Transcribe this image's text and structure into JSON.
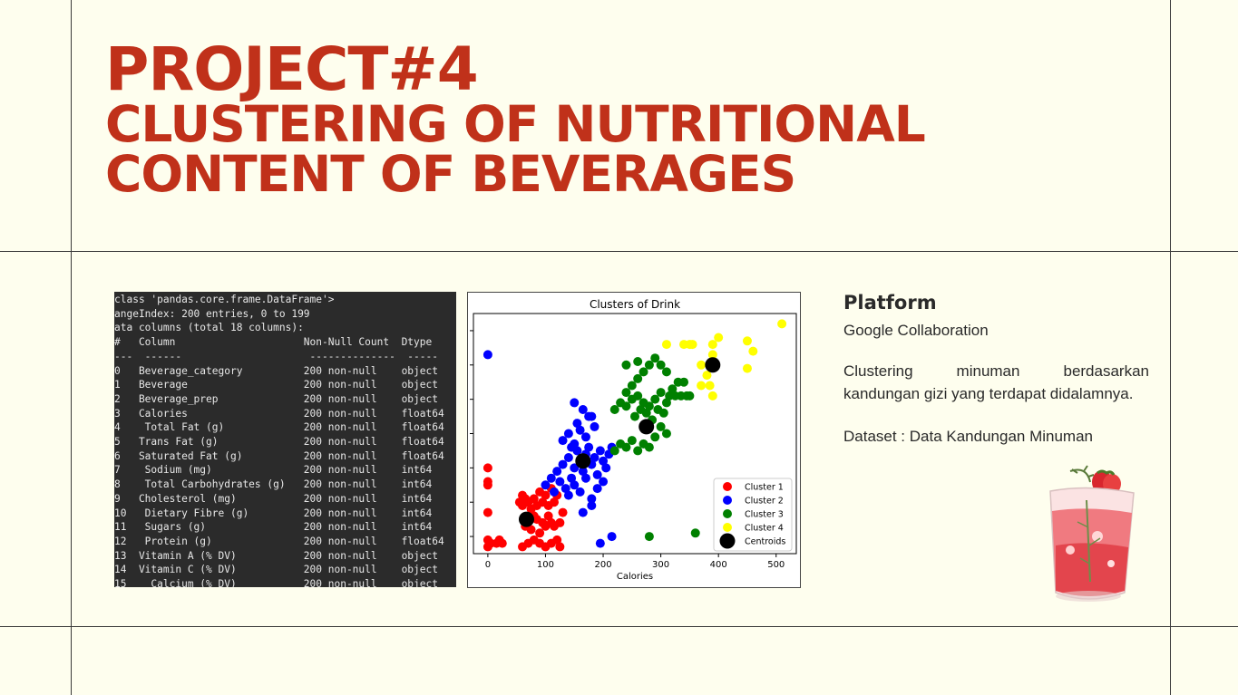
{
  "header": {
    "line1": "PROJECT#4",
    "line2": "CLUSTERING OF NUTRITIONAL",
    "line3": "CONTENT OF BEVERAGES"
  },
  "console": {
    "lines": [
      "class 'pandas.core.frame.DataFrame'>",
      "angeIndex: 200 entries, 0 to 199",
      "ata columns (total 18 columns):",
      "#   Column                     Non-Null Count  Dtype",
      "---  ------                     --------------  -----",
      "0   Beverage_category          200 non-null    object",
      "1   Beverage                   200 non-null    object",
      "2   Beverage_prep              200 non-null    object",
      "3   Calories                   200 non-null    float64",
      "4    Total Fat (g)             200 non-null    float64",
      "5   Trans Fat (g)              200 non-null    float64",
      "6   Saturated Fat (g)          200 non-null    float64",
      "7    Sodium (mg)               200 non-null    int64",
      "8    Total Carbohydrates (g)   200 non-null    int64",
      "9   Cholesterol (mg)           200 non-null    int64",
      "10   Dietary Fibre (g)         200 non-null    int64",
      "11   Sugars (g)                200 non-null    int64",
      "12   Protein (g)               200 non-null    float64",
      "13  Vitamin A (% DV)           200 non-null    object",
      "14  Vitamin C (% DV)           200 non-null    object",
      "15    Calcium (% DV)           200 non-null    object"
    ]
  },
  "chart_data": {
    "type": "scatter",
    "title": "Clusters of Drink",
    "xlabel": "Calories",
    "ylabel": "",
    "xlim": [
      -25,
      535
    ],
    "ylim": [
      0,
      70
    ],
    "xticks": [
      0,
      100,
      200,
      300,
      400,
      500
    ],
    "legend_position": "lower-right",
    "series": [
      {
        "name": "Cluster 1",
        "color": "#ff0000",
        "points": [
          [
            0,
            2
          ],
          [
            0,
            4
          ],
          [
            5,
            3
          ],
          [
            15,
            3
          ],
          [
            20,
            4
          ],
          [
            25,
            3
          ],
          [
            0,
            12
          ],
          [
            0,
            20
          ],
          [
            0,
            21
          ],
          [
            0,
            25
          ],
          [
            55,
            15
          ],
          [
            60,
            14
          ],
          [
            60,
            17
          ],
          [
            65,
            16
          ],
          [
            70,
            15
          ],
          [
            75,
            13
          ],
          [
            80,
            16
          ],
          [
            85,
            14
          ],
          [
            90,
            18
          ],
          [
            95,
            15
          ],
          [
            100,
            17
          ],
          [
            105,
            14
          ],
          [
            110,
            19
          ],
          [
            115,
            15
          ],
          [
            120,
            17
          ],
          [
            60,
            2
          ],
          [
            70,
            3
          ],
          [
            80,
            4
          ],
          [
            90,
            3
          ],
          [
            100,
            2
          ],
          [
            110,
            3
          ],
          [
            120,
            4
          ],
          [
            125,
            2
          ],
          [
            65,
            8
          ],
          [
            75,
            7
          ],
          [
            85,
            10
          ],
          [
            95,
            9
          ],
          [
            105,
            11
          ],
          [
            115,
            8
          ],
          [
            125,
            9
          ],
          [
            130,
            12
          ],
          [
            70,
            10
          ],
          [
            80,
            11
          ],
          [
            90,
            6
          ],
          [
            100,
            8
          ],
          [
            110,
            9
          ]
        ]
      },
      {
        "name": "Cluster 2",
        "color": "#0000ff",
        "points": [
          [
            0,
            58
          ],
          [
            130,
            26
          ],
          [
            140,
            28
          ],
          [
            145,
            22
          ],
          [
            150,
            25
          ],
          [
            155,
            30
          ],
          [
            160,
            27
          ],
          [
            165,
            24
          ],
          [
            170,
            29
          ],
          [
            175,
            31
          ],
          [
            180,
            26
          ],
          [
            185,
            28
          ],
          [
            190,
            23
          ],
          [
            195,
            30
          ],
          [
            200,
            27
          ],
          [
            205,
            25
          ],
          [
            210,
            29
          ],
          [
            215,
            31
          ],
          [
            100,
            20
          ],
          [
            110,
            22
          ],
          [
            115,
            18
          ],
          [
            120,
            24
          ],
          [
            125,
            21
          ],
          [
            135,
            19
          ],
          [
            140,
            17
          ],
          [
            150,
            20
          ],
          [
            160,
            18
          ],
          [
            170,
            22
          ],
          [
            180,
            16
          ],
          [
            190,
            19
          ],
          [
            200,
            21
          ],
          [
            130,
            33
          ],
          [
            140,
            35
          ],
          [
            150,
            32
          ],
          [
            155,
            38
          ],
          [
            160,
            36
          ],
          [
            170,
            34
          ],
          [
            175,
            40
          ],
          [
            150,
            44
          ],
          [
            165,
            42
          ],
          [
            180,
            40
          ],
          [
            185,
            37
          ],
          [
            145,
            31
          ],
          [
            195,
            3
          ],
          [
            215,
            5
          ],
          [
            165,
            12
          ],
          [
            180,
            14
          ]
        ]
      },
      {
        "name": "Cluster 3",
        "color": "#008000",
        "points": [
          [
            220,
            42
          ],
          [
            230,
            44
          ],
          [
            240,
            43
          ],
          [
            250,
            45
          ],
          [
            255,
            40
          ],
          [
            260,
            46
          ],
          [
            265,
            42
          ],
          [
            270,
            44
          ],
          [
            275,
            41
          ],
          [
            280,
            43
          ],
          [
            285,
            39
          ],
          [
            290,
            45
          ],
          [
            295,
            42
          ],
          [
            300,
            47
          ],
          [
            305,
            41
          ],
          [
            310,
            44
          ],
          [
            315,
            46
          ],
          [
            320,
            48
          ],
          [
            325,
            46
          ],
          [
            330,
            50
          ],
          [
            335,
            46
          ],
          [
            340,
            50
          ],
          [
            345,
            46
          ],
          [
            350,
            46
          ],
          [
            240,
            47
          ],
          [
            250,
            49
          ],
          [
            260,
            51
          ],
          [
            270,
            53
          ],
          [
            280,
            55
          ],
          [
            290,
            57
          ],
          [
            300,
            55
          ],
          [
            310,
            53
          ],
          [
            240,
            55
          ],
          [
            260,
            56
          ],
          [
            220,
            30
          ],
          [
            230,
            32
          ],
          [
            240,
            31
          ],
          [
            250,
            33
          ],
          [
            260,
            30
          ],
          [
            270,
            32
          ],
          [
            280,
            31
          ],
          [
            290,
            34
          ],
          [
            300,
            37
          ],
          [
            310,
            35
          ],
          [
            270,
            37
          ],
          [
            280,
            5
          ],
          [
            360,
            6
          ]
        ]
      },
      {
        "name": "Cluster 4",
        "color": "#ffff00",
        "points": [
          [
            310,
            61
          ],
          [
            340,
            61
          ],
          [
            350,
            61
          ],
          [
            355,
            61
          ],
          [
            390,
            61
          ],
          [
            370,
            55
          ],
          [
            380,
            52
          ],
          [
            370,
            49
          ],
          [
            385,
            49
          ],
          [
            390,
            46
          ],
          [
            400,
            63
          ],
          [
            450,
            62
          ],
          [
            460,
            59
          ],
          [
            510,
            67
          ],
          [
            450,
            54
          ],
          [
            390,
            58
          ]
        ]
      },
      {
        "name": "Centroids",
        "color": "#000000",
        "points": [
          [
            67,
            10
          ],
          [
            165,
            27
          ],
          [
            275,
            37
          ],
          [
            390,
            55
          ]
        ]
      }
    ]
  },
  "platform": {
    "title": "Platform",
    "value": "Google Collaboration",
    "description": "Clustering minuman berdasarkan kandungan gizi yang terdapat didalamnya.",
    "dataset": "Dataset : Data Kandungan Minuman"
  },
  "colors": {
    "background": "#fefeee",
    "title": "#c0311a",
    "console_bg": "#2b2b2b"
  }
}
